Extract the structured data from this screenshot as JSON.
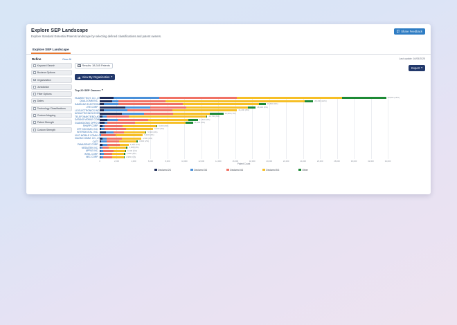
{
  "colors": {
    "accent_orange": "#e8772e",
    "primary_navy": "#22386b",
    "link_blue": "#2e6bb0",
    "share_button_blue": "#2e7cc3"
  },
  "header": {
    "title": "Explore SEP Landscape",
    "subtitle": "Explore Standard Essential Patents landscape by selecting defined classifications and patent owners.",
    "share_feedback_label": "Share Feedback"
  },
  "tabs": [
    {
      "label": "Explore SEP Landscape",
      "active": true
    }
  ],
  "sidebar": {
    "title": "Refine",
    "clear_all_label": "Clear All",
    "items": [
      "Keyword Search",
      "Boolean Options",
      "Organization",
      "Jurisdiction",
      "Filter Options",
      "Dates",
      "Technology Classifications",
      "Custom Mapping",
      "Patent Strength",
      "Custom Strength"
    ]
  },
  "toolbar": {
    "results_chip": "Results: 38,345 Patents",
    "view_by_label": "View By Organization",
    "top_selector_label": "Top 20 SEP Owners",
    "last_update": "Last update: 16/05/2025",
    "export_label": "Export"
  },
  "chart_data": {
    "type": "bar",
    "orientation": "horizontal",
    "stacked": true,
    "title": "Top 20 SEP Owners",
    "xlabel": "Patent Count",
    "xlim": [
      0,
      34000
    ],
    "xtick_step": 2000,
    "xtick_labels": [
      "0",
      "2,000",
      "4,000",
      "6,000",
      "8,000",
      "10,000",
      "12,000",
      "14,000",
      "16,000",
      "18,000",
      "20,000",
      "22,000",
      "24,000",
      "26,000",
      "28,000",
      "30,000",
      "32,000",
      "34,000"
    ],
    "grid": true,
    "legend_position": "bottom",
    "categories": [
      "HUAWEI TECH. CO., LTD.",
      "QUALCOMM INC.",
      "SAMSUNG ELECTRONICS CO., LTD.",
      "ZTE CORP.",
      "LG ELECTRONICS INC.",
      "NOKIA TECHNOLOGIES OY",
      "TELEFONAKTIEBOLAGET LM ERICSSON",
      "DATANG MOBILE COMM. EQUIP.",
      "GUANGDONG OPPO MOBILE TELECOM.",
      "SHARP CORP.",
      "NTT DOCOMO, INC.",
      "INTERDIGITAL, INC.",
      "VIVO MOBILE COMM. CO., LTD.",
      "XIAOMI COMM. CO., LTD.",
      "CATT",
      "PANASONIC CORP.",
      "MEDIATEK INC.",
      "APPLE INC.",
      "INTEL CORP.",
      "NEC CORP."
    ],
    "series": [
      {
        "name": "Declared 2G",
        "color": "#1e2d5a",
        "values": [
          1600,
          1500,
          500,
          3000,
          500,
          2600,
          300,
          900,
          600,
          300,
          200,
          700,
          0,
          300,
          200,
          300,
          100,
          100,
          100,
          100
        ]
      },
      {
        "name": "Declared 3G",
        "color": "#4a90d9",
        "values": [
          5400,
          700,
          1700,
          3000,
          2800,
          2600,
          500,
          1200,
          300,
          300,
          400,
          900,
          200,
          500,
          600,
          600,
          200,
          300,
          400,
          300
        ]
      },
      {
        "name": "Declared 4G",
        "color": "#f07265",
        "values": [
          9200,
          5600,
          7600,
          4200,
          5300,
          3500,
          2600,
          3600,
          3300,
          2100,
          2500,
          1300,
          1700,
          1800,
          1500,
          1500,
          800,
          1200,
          1000,
          1100
        ]
      },
      {
        "name": "Declared 5G",
        "color": "#f6bf26",
        "values": [
          12400,
          16400,
          9000,
          7300,
          7600,
          4300,
          9200,
          4800,
          5900,
          4000,
          3200,
          2500,
          3200,
          2300,
          2000,
          1000,
          2000,
          1400,
          1400,
          1350
        ]
      },
      {
        "name": "Other",
        "color": "#1d8a35",
        "values": [
          5200,
          1000,
          800,
          900,
          0,
          1600,
          100,
          1100,
          900,
          100,
          0,
          100,
          0,
          0,
          200,
          0,
          200,
          100,
          100,
          100
        ]
      }
    ],
    "total_labels": [
      "33,800 (16%)",
      "25,200 (12%)",
      "19,600 (9%)",
      "18,400 (9%)",
      "16,200 (8%)",
      "14,600 (7%)",
      "12,700 (6%)",
      "11,600 (5%)",
      "11,000 (5%)",
      "6,800 (3%)",
      "6,300 (3%)",
      "5,500 (3%)",
      "5,100 (2%)",
      "4,900 (2%)",
      "4,500 (2%)",
      "3,400 (2%)",
      "3,300 (2%)",
      "3,100 (1%)",
      "3,000 (1%)",
      "2,950 (1%)"
    ]
  }
}
